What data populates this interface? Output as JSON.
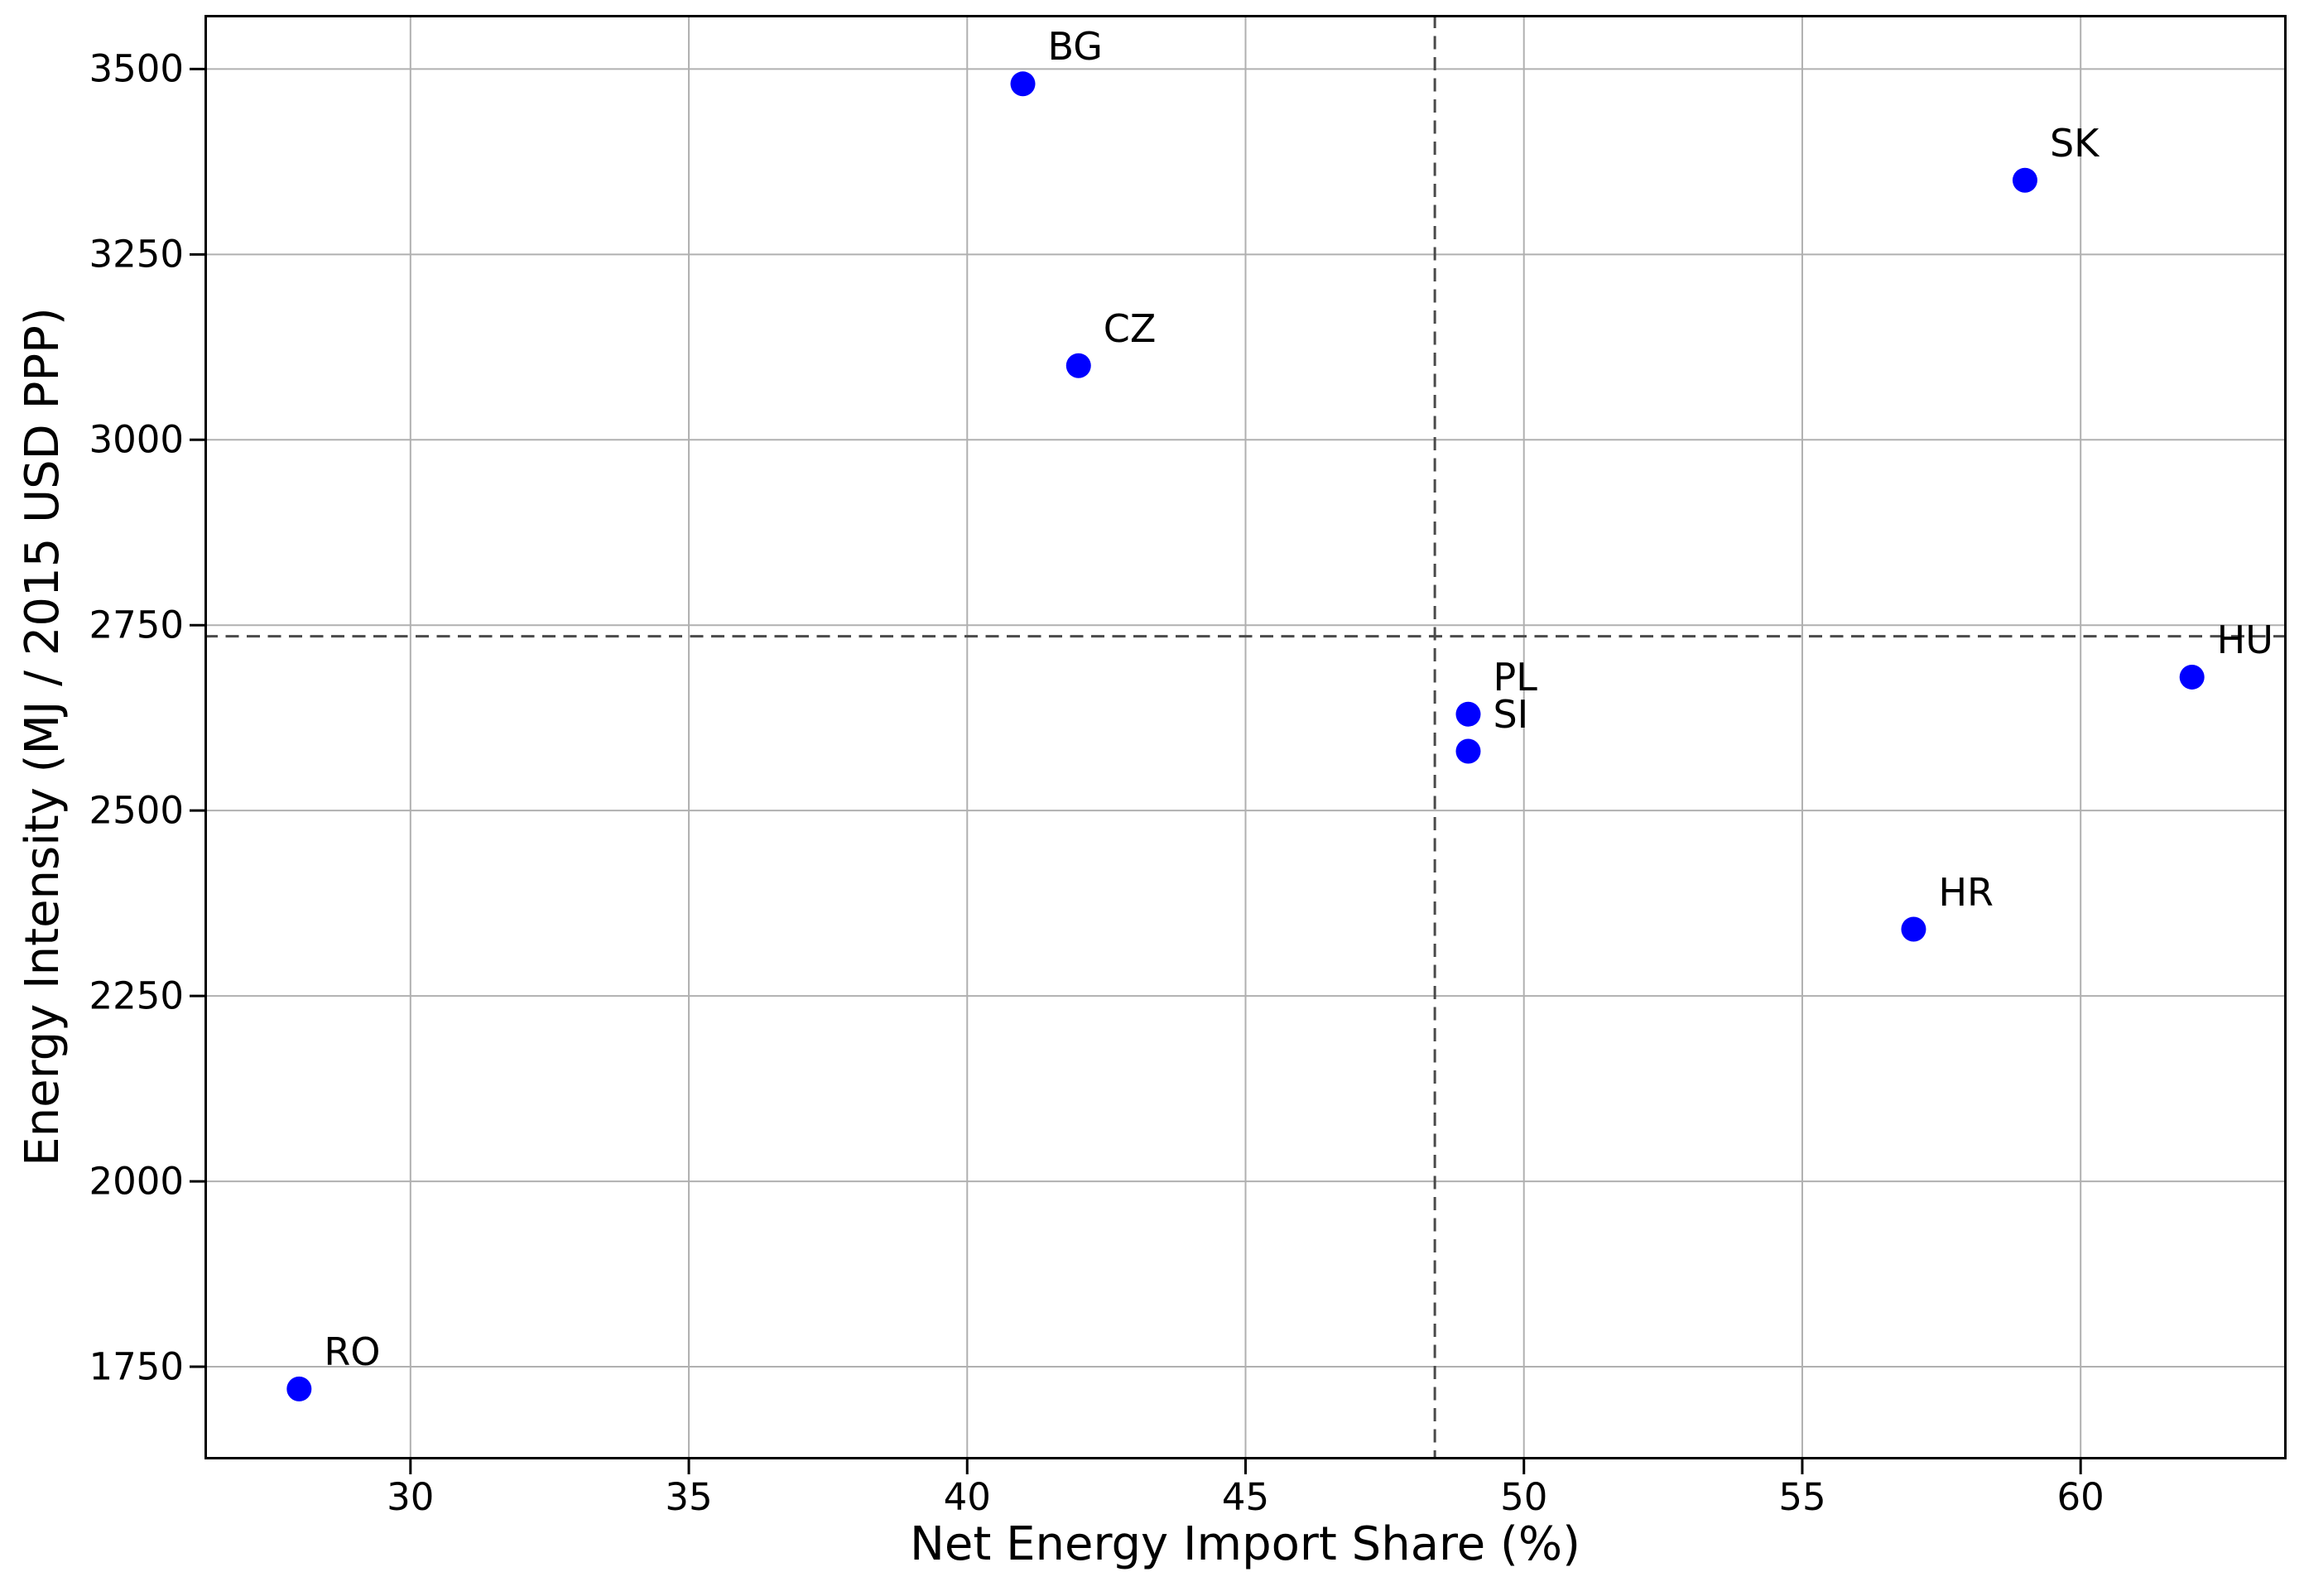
{
  "chart_data": {
    "type": "scatter",
    "title": "",
    "xlabel": "Net Energy Import Share (%)",
    "ylabel": "Energy Intensity (MJ / 2015 USD PPP)",
    "points": [
      {
        "label": "BG",
        "x": 41,
        "y": 3480
      },
      {
        "label": "CZ",
        "x": 42,
        "y": 3100
      },
      {
        "label": "SK",
        "x": 59,
        "y": 3350
      },
      {
        "label": "HU",
        "x": 62,
        "y": 2680
      },
      {
        "label": "PL",
        "x": 49,
        "y": 2630
      },
      {
        "label": "SI",
        "x": 49,
        "y": 2580
      },
      {
        "label": "HR",
        "x": 57,
        "y": 2340
      },
      {
        "label": "RO",
        "x": 28,
        "y": 1720
      }
    ],
    "mean_lines": {
      "vertical_at_x": 48.4,
      "horizontal_at_y": 2735,
      "style": "dashed",
      "color": "#4a4a4a"
    },
    "xticks": [
      30,
      35,
      40,
      45,
      50,
      55,
      60
    ],
    "yticks": [
      1750,
      2000,
      2250,
      2500,
      2750,
      3000,
      3250,
      3500
    ],
    "xlim": [
      26.3,
      63.7
    ],
    "ylim": [
      1625,
      3573
    ],
    "grid": true,
    "legend": false,
    "marker_color": "#0000ff",
    "marker_radius_px": 15,
    "grid_color": "#b0b0b0",
    "axis_color": "#000000",
    "background": "#ffffff"
  }
}
